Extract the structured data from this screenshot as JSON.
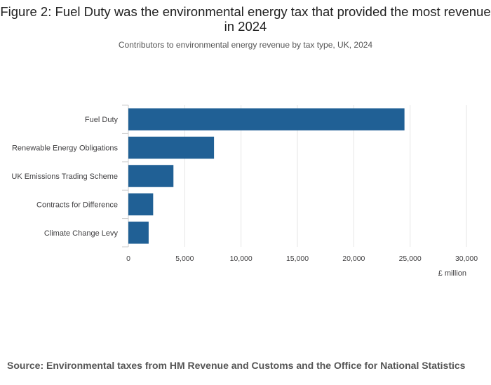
{
  "chart_data": {
    "type": "bar",
    "orientation": "horizontal",
    "title": "Figure 2: Fuel Duty was the environmental energy tax that provided the most revenue in 2024",
    "subtitle": "Contributors to environmental energy revenue by tax type, UK, 2024",
    "categories": [
      "Fuel Duty",
      "Renewable Energy Obligations",
      "UK Emissions Trading Scheme",
      "Contracts for Difference",
      "Climate Change Levy"
    ],
    "values": [
      24500,
      7600,
      4000,
      2200,
      1800
    ],
    "xlabel": "£ million",
    "ylabel": "",
    "xlim": [
      0,
      30000
    ],
    "xticks": [
      0,
      5000,
      10000,
      15000,
      20000,
      25000,
      30000
    ],
    "xtick_labels": [
      "0",
      "5,000",
      "10,000",
      "15,000",
      "20,000",
      "25,000",
      "30,000"
    ],
    "bar_color": "#206095",
    "grid": true
  },
  "source": "Source: Environmental taxes from HM Revenue and Customs and the Office for National Statistics"
}
